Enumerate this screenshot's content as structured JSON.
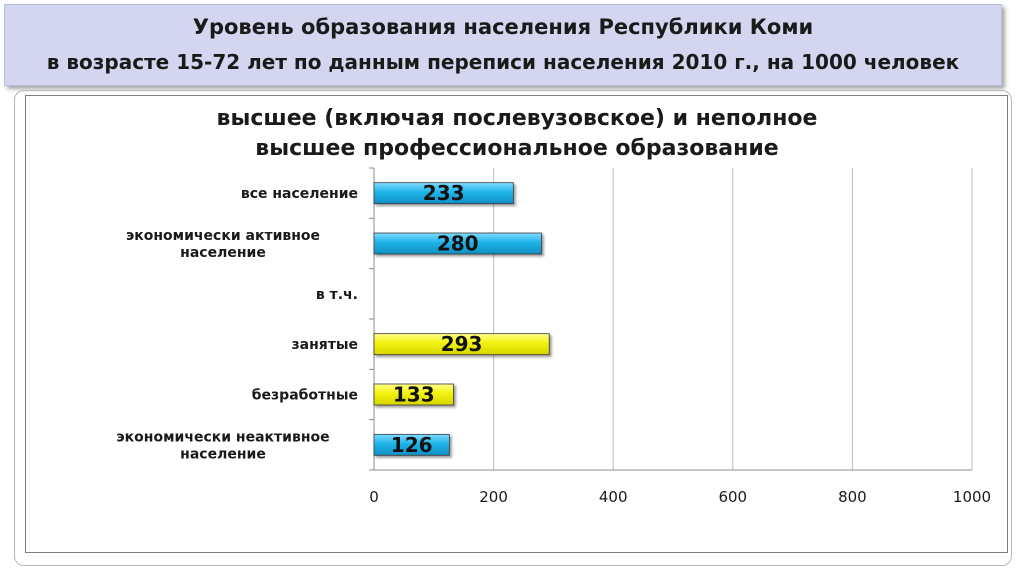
{
  "header": {
    "line1": "Уровень образования населения Республики Коми",
    "line2": "в возрасте 15-72 лет по данным переписи населения 2010 г., на 1000 человек"
  },
  "colors": {
    "header_bg": "#d4d6f0",
    "bar_blue": "#1fb4e8",
    "bar_yellow": "#f2f20a",
    "gridline": "#bfbfbf"
  },
  "chart_data": {
    "type": "bar",
    "orientation": "horizontal",
    "title_lines": [
      "высшее (включая послевузовское) и неполное",
      "высшее профессиональное образование"
    ],
    "categories": [
      {
        "lines": [
          "все население"
        ],
        "value": 233,
        "color": "#1fb4e8"
      },
      {
        "lines": [
          "экономически активное",
          "население"
        ],
        "value": 280,
        "color": "#1fb4e8"
      },
      {
        "lines": [
          "в т.ч."
        ],
        "value": null,
        "color": null
      },
      {
        "lines": [
          "занятые"
        ],
        "value": 293,
        "color": "#f2f20a"
      },
      {
        "lines": [
          "безработные"
        ],
        "value": 133,
        "color": "#f2f20a"
      },
      {
        "lines": [
          "экономически неактивное",
          "население"
        ],
        "value": 126,
        "color": "#1fb4e8"
      }
    ],
    "xlim": [
      0,
      1000
    ],
    "xticks": [
      "0",
      "200",
      "400",
      "600",
      "800",
      "1000"
    ],
    "grid": true,
    "data_labels": true
  }
}
